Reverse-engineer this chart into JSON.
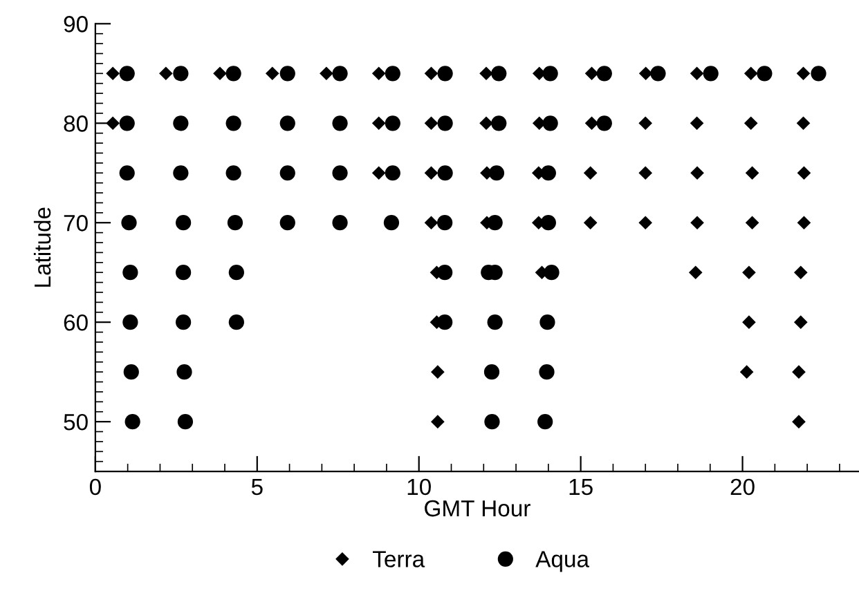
{
  "chart_data": {
    "type": "scatter",
    "xlabel": "GMT Hour",
    "ylabel": "Latitude",
    "xlim": [
      0,
      23.6
    ],
    "ylim": [
      45,
      90
    ],
    "xticks": [
      0,
      5,
      10,
      15,
      20
    ],
    "yticks": [
      50,
      60,
      70,
      80,
      90
    ],
    "grid": false,
    "legend": "bottom",
    "series": [
      {
        "name": "Terra",
        "color": "#000000",
        "marker": "diamond",
        "x": [
          0.54,
          2.18,
          3.85,
          5.47,
          7.14,
          8.76,
          10.38,
          12.08,
          13.72,
          15.34,
          17.01,
          18.59,
          20.26,
          21.88,
          0.54,
          8.76,
          10.38,
          12.08,
          13.72,
          15.34,
          17.0,
          18.59,
          20.26,
          21.88,
          8.76,
          10.38,
          12.1,
          13.7,
          15.3,
          17.0,
          18.6,
          20.3,
          21.9,
          10.38,
          12.1,
          13.7,
          15.3,
          17.0,
          18.6,
          20.3,
          21.9,
          10.55,
          13.8,
          18.55,
          20.2,
          21.8,
          10.55,
          12.15,
          20.2,
          21.8,
          10.58,
          20.13,
          21.74,
          10.58,
          21.74
        ],
        "values": [
          85,
          85,
          85,
          85,
          85,
          85,
          85,
          85,
          85,
          85,
          85,
          85,
          85,
          85,
          80,
          80,
          80,
          80,
          80,
          80,
          80,
          80,
          80,
          80,
          75,
          75,
          75,
          75,
          75,
          75,
          75,
          75,
          75,
          70,
          70,
          70,
          70,
          70,
          70,
          70,
          70,
          65,
          65,
          65,
          65,
          65,
          60,
          null,
          60,
          60,
          55,
          55,
          55,
          50,
          50
        ]
      },
      {
        "name": "Aqua",
        "color": "#000000",
        "marker": "circle",
        "x": [
          0.98,
          2.64,
          4.27,
          5.94,
          7.56,
          9.19,
          10.81,
          12.47,
          14.06,
          15.73,
          17.39,
          19.02,
          20.68,
          22.35,
          0.98,
          2.64,
          4.27,
          5.94,
          7.56,
          9.19,
          10.81,
          12.47,
          14.06,
          15.73,
          0.98,
          2.64,
          4.27,
          5.94,
          7.56,
          9.19,
          10.81,
          12.4,
          14.0,
          1.04,
          2.72,
          4.32,
          5.94,
          7.56,
          9.15,
          10.8,
          12.35,
          14.0,
          1.08,
          2.72,
          4.36,
          10.8,
          12.15,
          12.35,
          14.1,
          1.08,
          2.72,
          4.36,
          10.8,
          12.35,
          13.97,
          1.11,
          2.75,
          12.25,
          13.95,
          1.15,
          2.78,
          12.26,
          13.9
        ],
        "values": [
          85,
          85,
          85,
          85,
          85,
          85,
          85,
          85,
          85,
          85,
          85,
          85,
          85,
          85,
          80,
          80,
          80,
          80,
          80,
          80,
          80,
          80,
          80,
          80,
          75,
          75,
          75,
          75,
          75,
          75,
          75,
          75,
          75,
          70,
          70,
          70,
          70,
          70,
          70,
          70,
          70,
          70,
          65,
          65,
          65,
          65,
          65,
          65,
          65,
          60,
          60,
          60,
          60,
          60,
          60,
          55,
          55,
          55,
          55,
          50,
          50,
          50,
          50
        ]
      }
    ]
  }
}
